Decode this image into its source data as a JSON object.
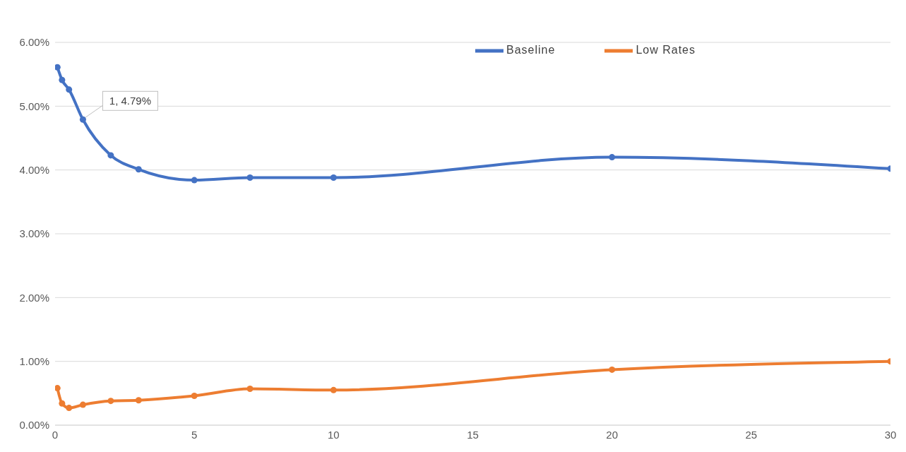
{
  "chart_data": {
    "type": "line",
    "x": [
      0.083,
      0.25,
      0.5,
      1,
      2,
      3,
      5,
      7,
      10,
      20,
      30
    ],
    "series": [
      {
        "name": "Baseline",
        "color": "#4472c4",
        "values": [
          5.61,
          5.41,
          5.26,
          4.79,
          4.23,
          4.01,
          3.84,
          3.88,
          3.88,
          4.2,
          4.02
        ]
      },
      {
        "name": "Low Rates",
        "color": "#ed7d31",
        "values": [
          0.58,
          0.34,
          0.27,
          0.32,
          0.38,
          0.39,
          0.46,
          0.57,
          0.55,
          0.87,
          1.0
        ]
      }
    ],
    "xlim": [
      0,
      30
    ],
    "xticks": [
      0,
      5,
      10,
      15,
      20,
      25,
      30
    ],
    "ylim": [
      0,
      6
    ],
    "yticks": [
      {
        "value": 0,
        "label": "0.00%"
      },
      {
        "value": 1,
        "label": "1.00%"
      },
      {
        "value": 2,
        "label": "2.00%"
      },
      {
        "value": 3,
        "label": "3.00%"
      },
      {
        "value": 4,
        "label": "4.00%"
      },
      {
        "value": 5,
        "label": "5.00%"
      },
      {
        "value": 6,
        "label": "6.00%"
      }
    ],
    "annotations": [
      {
        "text": "1, 4.79%",
        "x": 1,
        "y": 4.79
      }
    ],
    "grid": "y",
    "legend": "top right",
    "marker": "circle",
    "line_style": "solid"
  }
}
